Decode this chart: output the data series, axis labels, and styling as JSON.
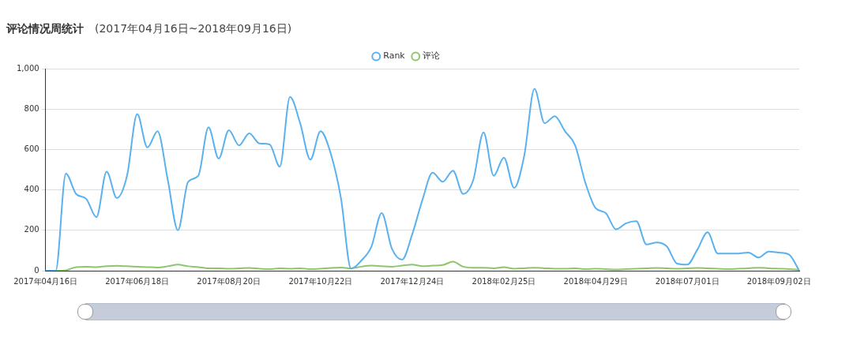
{
  "chart_data": {
    "type": "line",
    "title": "评论情况周统计",
    "subtitle": "(2017年04月16日~2018年09月16日)",
    "categories": [
      "2017年04月16日",
      null,
      null,
      null,
      null,
      null,
      null,
      null,
      null,
      "2017年06月18日",
      null,
      null,
      null,
      null,
      null,
      null,
      null,
      null,
      "2017年08月20日",
      null,
      null,
      null,
      null,
      null,
      null,
      null,
      null,
      "2017年10月22日",
      null,
      null,
      null,
      null,
      null,
      null,
      null,
      null,
      "2017年12月24日",
      null,
      null,
      null,
      null,
      null,
      null,
      null,
      null,
      "2018年02月25日",
      null,
      null,
      null,
      null,
      null,
      null,
      null,
      null,
      "2018年04月29日",
      null,
      null,
      null,
      null,
      null,
      null,
      null,
      null,
      "2018年07月01日",
      null,
      null,
      null,
      null,
      null,
      null,
      null,
      null,
      "2018年09月02日",
      null,
      null
    ],
    "series": [
      {
        "name": "Rank",
        "color": "#5ab1ef",
        "values": [
          0,
          0,
          480,
          380,
          355,
          265,
          490,
          360,
          470,
          775,
          610,
          690,
          450,
          200,
          440,
          470,
          710,
          555,
          695,
          620,
          680,
          630,
          625,
          515,
          860,
          730,
          550,
          690,
          580,
          360,
          10,
          50,
          120,
          285,
          110,
          55,
          180,
          350,
          485,
          440,
          495,
          380,
          450,
          685,
          470,
          560,
          410,
          570,
          900,
          730,
          765,
          690,
          620,
          435,
          310,
          285,
          205,
          235,
          245,
          130,
          140,
          120,
          35,
          30,
          105,
          190,
          85,
          85,
          85,
          90,
          65,
          95,
          90,
          80,
          0
        ]
      },
      {
        "name": "评论",
        "color": "#8cc66d",
        "values": [
          0,
          0,
          2,
          18,
          20,
          18,
          22,
          24,
          22,
          20,
          18,
          16,
          22,
          30,
          22,
          18,
          12,
          12,
          10,
          12,
          14,
          10,
          8,
          12,
          10,
          12,
          8,
          10,
          14,
          16,
          12,
          20,
          25,
          22,
          20,
          25,
          30,
          22,
          25,
          28,
          45,
          20,
          15,
          15,
          12,
          18,
          10,
          12,
          15,
          12,
          10,
          10,
          12,
          8,
          10,
          8,
          6,
          8,
          10,
          12,
          14,
          12,
          10,
          12,
          14,
          12,
          10,
          8,
          10,
          12,
          15,
          12,
          10,
          8,
          5
        ]
      }
    ],
    "ylim": [
      0,
      1000
    ],
    "yticks": [
      0,
      200,
      400,
      600,
      800,
      {
        "value": 1000,
        "label": "1,000"
      }
    ],
    "grid": "y",
    "legend": "top",
    "marker": "none",
    "line_style": "solid"
  }
}
